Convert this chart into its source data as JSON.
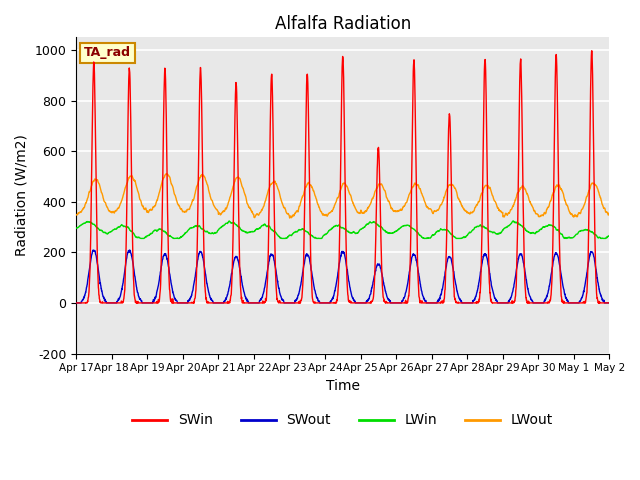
{
  "title": "Alfalfa Radiation",
  "xlabel": "Time",
  "ylabel": "Radiation (W/m2)",
  "ylim": [
    -200,
    1050
  ],
  "xlim": [
    0,
    15
  ],
  "background_color": "#e8e8e8",
  "grid_color": "white",
  "annotation_text": "TA_rad",
  "annotation_bg": "#ffffcc",
  "annotation_border": "#cc8800",
  "legend_entries": [
    "SWin",
    "SWout",
    "LWin",
    "LWout"
  ],
  "legend_colors": [
    "#ff0000",
    "#0000cc",
    "#00dd00",
    "#ff9900"
  ],
  "num_days": 15,
  "SWin_peaks": [
    950,
    925,
    925,
    930,
    870,
    905,
    910,
    975,
    620,
    960,
    750,
    965,
    960,
    985,
    995
  ],
  "SWout_peaks": [
    210,
    210,
    195,
    205,
    185,
    195,
    195,
    205,
    155,
    195,
    185,
    195,
    195,
    200,
    205
  ],
  "LWin_base": 285,
  "LWout_base": 350,
  "LWout_peak_amp": 130
}
